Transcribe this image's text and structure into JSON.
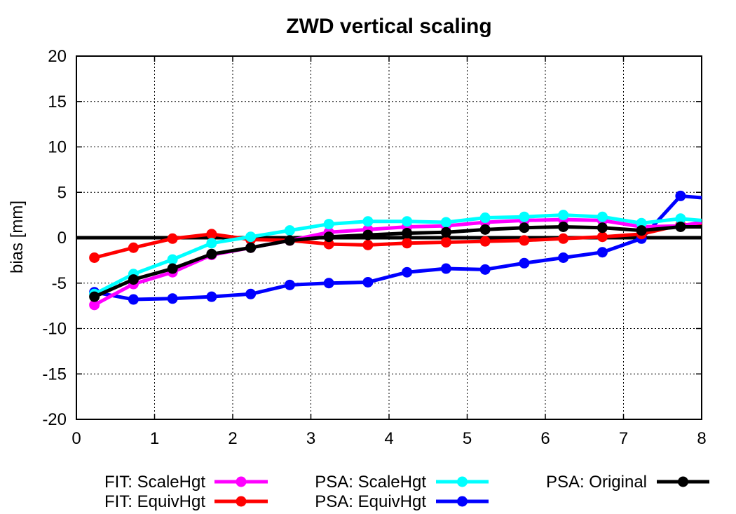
{
  "chart_data": {
    "type": "line",
    "title": "ZWD vertical scaling",
    "xlabel": "",
    "ylabel": "bias [mm]",
    "xlim": [
      0,
      8
    ],
    "ylim": [
      -20,
      20
    ],
    "xticks": [
      0,
      1,
      2,
      3,
      4,
      5,
      6,
      7,
      8
    ],
    "yticks": [
      -20,
      -15,
      -10,
      -5,
      0,
      5,
      10,
      15,
      20
    ],
    "grid": true,
    "legend_position": "bottom",
    "zero_line": true,
    "x": [
      0.23,
      0.73,
      1.23,
      1.73,
      2.23,
      2.73,
      3.23,
      3.73,
      4.23,
      4.73,
      5.23,
      5.73,
      6.23,
      6.73,
      7.23,
      7.73
    ],
    "series": [
      {
        "name": "FIT: ScaleHgt",
        "color": "#ff00ff",
        "values": [
          -7.4,
          -5.1,
          -3.8,
          -1.9,
          -1.1,
          -0.3,
          0.6,
          0.9,
          1.2,
          1.3,
          1.7,
          1.9,
          2.0,
          1.9,
          1.2,
          1.3
        ]
      },
      {
        "name": "FIT: EquivHgt",
        "color": "#ff0000",
        "values": [
          -2.2,
          -1.1,
          -0.1,
          0.4,
          -0.2,
          -0.3,
          -0.7,
          -0.8,
          -0.6,
          -0.5,
          -0.4,
          -0.3,
          -0.1,
          0.1,
          0.4,
          1.4
        ]
      },
      {
        "name": "PSA: ScaleHgt",
        "color": "#00ffff",
        "values": [
          -6.2,
          -4.0,
          -2.4,
          -0.6,
          0.1,
          0.8,
          1.5,
          1.8,
          1.8,
          1.7,
          2.2,
          2.3,
          2.5,
          2.3,
          1.6,
          2.1
        ]
      },
      {
        "name": "PSA: EquivHgt",
        "color": "#0000ff",
        "values": [
          -6.0,
          -6.8,
          -6.7,
          -6.5,
          -6.2,
          -5.2,
          -5.0,
          -4.9,
          -3.8,
          -3.4,
          -3.5,
          -2.8,
          -2.2,
          -1.6,
          -0.1,
          4.6
        ]
      },
      {
        "name": "PSA: Original",
        "color": "#000000",
        "values": [
          -6.5,
          -4.6,
          -3.4,
          -1.8,
          -1.1,
          -0.3,
          0.1,
          0.3,
          0.5,
          0.6,
          0.9,
          1.1,
          1.2,
          1.1,
          0.8,
          1.2
        ]
      }
    ],
    "line_end": {
      "PSA: EquivHgt": [
        8.0,
        4.4
      ],
      "PSA: Original": [
        8.0,
        1.2
      ],
      "PSA: ScaleHgt": [
        8.0,
        1.9
      ],
      "FIT: ScaleHgt": [
        8.0,
        1.7
      ],
      "FIT: EquivHgt": [
        8.0,
        1.5
      ]
    },
    "legend": [
      {
        "label": "FIT: ScaleHgt",
        "color": "#ff00ff"
      },
      {
        "label": "FIT: EquivHgt",
        "color": "#ff0000"
      },
      {
        "label": "PSA: ScaleHgt",
        "color": "#00ffff"
      },
      {
        "label": "PSA: EquivHgt",
        "color": "#0000ff"
      },
      {
        "label": "PSA: Original",
        "color": "#000000"
      }
    ]
  }
}
